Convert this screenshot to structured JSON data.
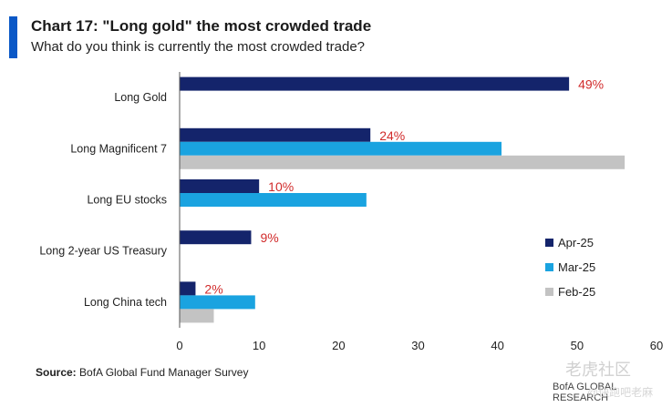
{
  "header": {
    "title": "Chart 17: \"Long gold\" the most crowded trade",
    "subtitle": "What do you think is currently the most crowded trade?"
  },
  "source": {
    "label": "Source:",
    "text": " BofA Global Fund Manager Survey"
  },
  "footer": "BofA GLOBAL RESEARCH",
  "watermark": {
    "brand": "老虎社区",
    "handle": "@快跑吧老麻"
  },
  "colors": {
    "Apr-25": "#14246b",
    "Mar-25": "#1aa3e0",
    "Feb-25": "#c3c3c3",
    "label": "#d12b2b",
    "axis": "#555555",
    "accent": "#0a58c7"
  },
  "chart_data": {
    "type": "bar",
    "orientation": "horizontal",
    "title": "Chart 17: \"Long gold\" the most crowded trade",
    "subtitle": "What do you think is currently the most crowded trade?",
    "categories": [
      "Long Gold",
      "Long Magnificent 7",
      "Long EU stocks",
      "Long 2-year US Treasury",
      "Long China tech"
    ],
    "series": [
      {
        "name": "Apr-25",
        "values": [
          49,
          24,
          10,
          9,
          2
        ],
        "labels": [
          "49%",
          "24%",
          "10%",
          "9%",
          "2%"
        ]
      },
      {
        "name": "Mar-25",
        "values": [
          null,
          40.5,
          23.5,
          null,
          9.5
        ]
      },
      {
        "name": "Feb-25",
        "values": [
          null,
          56,
          null,
          null,
          4.3
        ]
      }
    ],
    "xlim": [
      0,
      60
    ],
    "xticks": [
      0,
      10,
      20,
      30,
      40,
      50,
      60
    ],
    "legend_position": "right",
    "grid": false
  }
}
